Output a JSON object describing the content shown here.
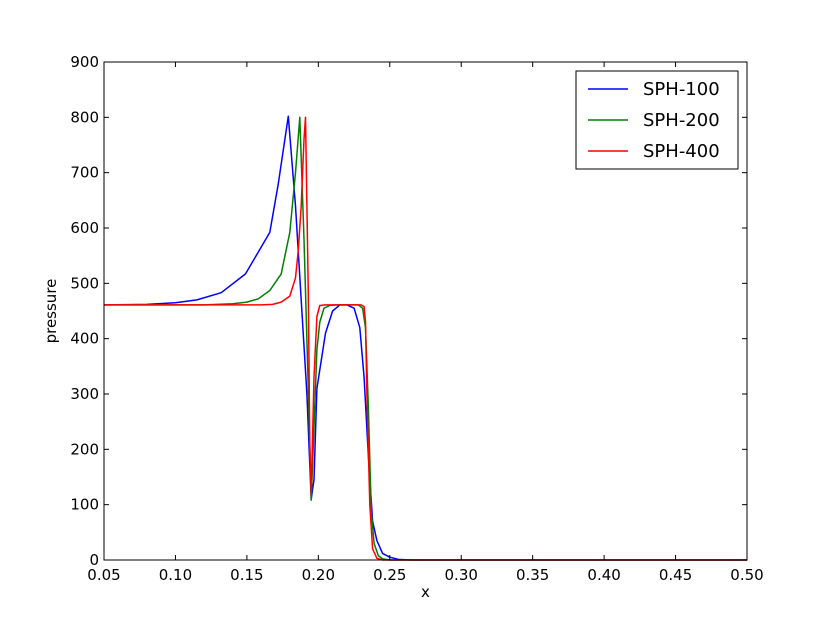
{
  "chart_data": {
    "type": "line",
    "title": "",
    "xlabel": "x",
    "ylabel": "pressure",
    "xlim": [
      0.05,
      0.5
    ],
    "ylim": [
      0,
      900
    ],
    "xticks": [
      "0.05",
      "0.10",
      "0.15",
      "0.20",
      "0.25",
      "0.30",
      "0.35",
      "0.40",
      "0.45",
      "0.50"
    ],
    "yticks": [
      "0",
      "100",
      "200",
      "300",
      "400",
      "500",
      "600",
      "700",
      "800",
      "900"
    ],
    "grid": false,
    "legend_position": "top-right",
    "series": [
      {
        "name": "SPH-100",
        "color": "#0000ff",
        "x": [
          0.05,
          0.08,
          0.1,
          0.115,
          0.132,
          0.149,
          0.166,
          0.172,
          0.179,
          0.184,
          0.188,
          0.192,
          0.195,
          0.197,
          0.199,
          0.202,
          0.205,
          0.21,
          0.215,
          0.22,
          0.225,
          0.229,
          0.232,
          0.235,
          0.238,
          0.241,
          0.245,
          0.25,
          0.256,
          0.265,
          0.275,
          0.3,
          0.5
        ],
        "y": [
          461,
          462,
          465,
          470,
          483,
          517,
          592,
          680,
          802,
          640,
          470,
          300,
          110,
          145,
          310,
          360,
          410,
          450,
          461,
          461,
          455,
          420,
          330,
          190,
          70,
          35,
          12,
          5,
          1,
          0,
          0,
          0,
          0
        ]
      },
      {
        "name": "SPH-200",
        "color": "#008000",
        "x": [
          0.05,
          0.12,
          0.14,
          0.15,
          0.158,
          0.166,
          0.174,
          0.18,
          0.184,
          0.187,
          0.19,
          0.193,
          0.195,
          0.197,
          0.199,
          0.201,
          0.204,
          0.208,
          0.213,
          0.22,
          0.228,
          0.231,
          0.233,
          0.235,
          0.237,
          0.239,
          0.242,
          0.245,
          0.25,
          0.5
        ],
        "y": [
          461,
          461,
          463,
          466,
          472,
          487,
          517,
          592,
          700,
          800,
          580,
          310,
          108,
          240,
          380,
          430,
          455,
          460,
          461,
          461,
          461,
          455,
          420,
          280,
          90,
          30,
          8,
          2,
          0,
          0
        ]
      },
      {
        "name": "SPH-400",
        "color": "#ff0000",
        "x": [
          0.05,
          0.16,
          0.168,
          0.174,
          0.18,
          0.184,
          0.186,
          0.188,
          0.19,
          0.191,
          0.193,
          0.194,
          0.195,
          0.197,
          0.199,
          0.201,
          0.205,
          0.22,
          0.23,
          0.232,
          0.233,
          0.234,
          0.236,
          0.238,
          0.241,
          0.245,
          0.5
        ],
        "y": [
          461,
          461,
          462,
          466,
          477,
          510,
          560,
          640,
          760,
          800,
          480,
          210,
          120,
          330,
          440,
          460,
          461,
          461,
          461,
          458,
          430,
          300,
          100,
          20,
          3,
          0,
          0
        ]
      }
    ]
  }
}
